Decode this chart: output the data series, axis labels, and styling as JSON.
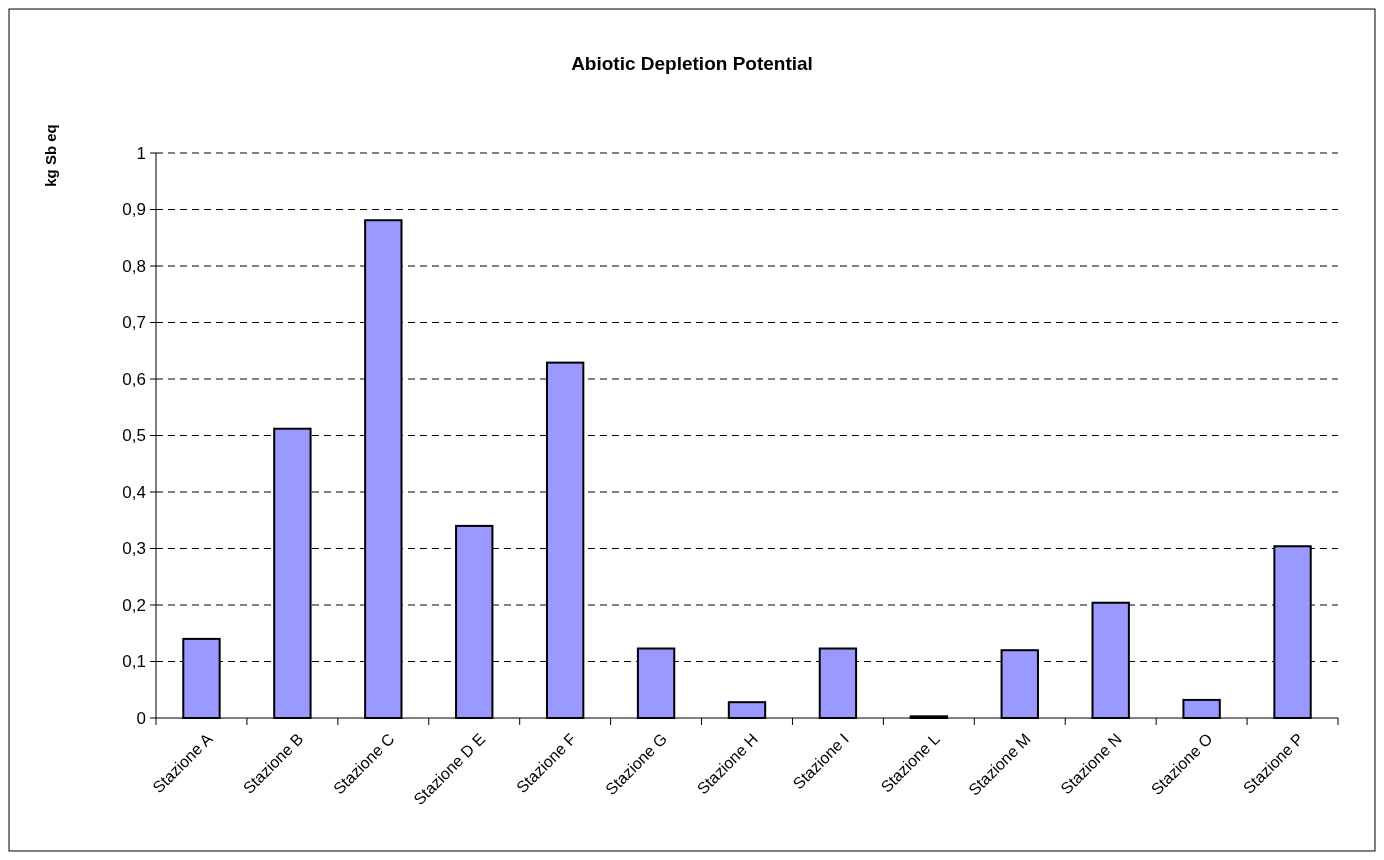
{
  "chart_data": {
    "type": "bar",
    "title": "Abiotic Depletion Potential",
    "ylabel": "kg Sb eq",
    "categories": [
      "Stazione A",
      "Stazione B",
      "Stazione C",
      "Stazione D E",
      "Stazione F",
      "Stazione G",
      "Stazione H",
      "Stazione I",
      "Stazione L",
      "Stazione M",
      "Stazione N",
      "Stazione O",
      "Stazione P"
    ],
    "values": [
      0.14,
      0.512,
      0.881,
      0.34,
      0.629,
      0.123,
      0.028,
      0.123,
      0.003,
      0.12,
      0.204,
      0.032,
      0.304
    ],
    "color": "#9999ff",
    "ylim": [
      0,
      1
    ],
    "yticks": [
      {
        "value": 0,
        "label": "0"
      },
      {
        "value": 0.1,
        "label": "0,1"
      },
      {
        "value": 0.2,
        "label": "0,2"
      },
      {
        "value": 0.3,
        "label": "0,3"
      },
      {
        "value": 0.4,
        "label": "0,4"
      },
      {
        "value": 0.5,
        "label": "0,5"
      },
      {
        "value": 0.6,
        "label": "0,6"
      },
      {
        "value": 0.7,
        "label": "0,7"
      },
      {
        "value": 0.8,
        "label": "0,8"
      },
      {
        "value": 0.9,
        "label": "0,9"
      },
      {
        "value": 1,
        "label": "1"
      }
    ],
    "grid": "y"
  }
}
